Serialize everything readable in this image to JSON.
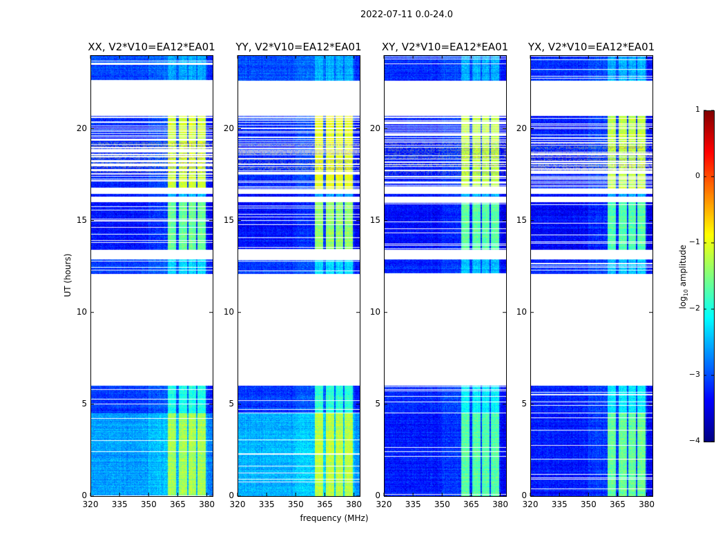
{
  "chart_data": {
    "type": "heatmap",
    "title": "2022-07-11 0.0-24.0",
    "xlabel": "frequency (MHz)",
    "ylabel": "UT (hours)",
    "xlim": [
      320,
      383
    ],
    "ylim": [
      0,
      24
    ],
    "xticks": [
      320,
      335,
      350,
      365,
      380
    ],
    "yticks": [
      0,
      5,
      10,
      15,
      20
    ],
    "colormap": "jet",
    "colorbar": {
      "label": "log10 amplitude",
      "label_base": "log",
      "label_sub": "10",
      "label_rest": " amplitude",
      "range": [
        -4,
        1
      ],
      "ticks": [
        1,
        0,
        -1,
        -2,
        -3,
        -4
      ],
      "tick_labels": [
        "1",
        "0",
        "−1",
        "−2",
        "−3",
        "−4"
      ]
    },
    "bright_bands_mhz": [
      [
        360,
        364.3
      ],
      [
        365.7,
        370
      ],
      [
        370.7,
        374.6
      ],
      [
        375.3,
        379.6
      ]
    ],
    "segments_hours": [
      {
        "t": [
          0,
          4.5
        ],
        "flag_fraction": 0.06
      },
      {
        "t": [
          4.5,
          6.0
        ],
        "flag_fraction": 0.08
      },
      {
        "t": [
          12.1,
          12.9
        ],
        "flag_fraction": 0.15
      },
      {
        "t": [
          13.4,
          16.0
        ],
        "flag_fraction": 0.12
      },
      {
        "t": [
          16.3,
          16.45
        ],
        "flag_fraction": 0.0
      },
      {
        "t": [
          16.7,
          20.7
        ],
        "flag_fraction": 0.35
      },
      {
        "t": [
          22.6,
          24.0
        ],
        "flag_fraction": 0.1
      }
    ],
    "panels": [
      {
        "title": "XX, V2*V10=EA12*EA01",
        "bg_levels": [
          -2.6,
          -3.1,
          -3.1,
          -3.3,
          -3.3,
          -3.2,
          -3.0
        ],
        "band_levels": [
          -1.3,
          -2.0,
          -2.3,
          -1.6,
          -2.5,
          -1.1,
          -2.5
        ]
      },
      {
        "title": "YY, V2*V10=EA12*EA01",
        "bg_levels": [
          -2.5,
          -3.1,
          -3.1,
          -3.3,
          -3.3,
          -3.2,
          -3.0
        ],
        "band_levels": [
          -1.2,
          -1.9,
          -2.3,
          -1.4,
          -2.5,
          -1.0,
          -2.5
        ]
      },
      {
        "title": "XY, V2*V10=EA12*EA01",
        "bg_levels": [
          -3.25,
          -3.2,
          -3.2,
          -3.35,
          -3.3,
          -3.25,
          -3.15
        ],
        "band_levels": [
          -1.7,
          -2.2,
          -2.4,
          -1.7,
          -2.5,
          -1.2,
          -2.5
        ]
      },
      {
        "title": "YX, V2*V10=EA12*EA01",
        "bg_levels": [
          -3.25,
          -3.2,
          -3.2,
          -3.35,
          -3.3,
          -3.25,
          -3.15
        ],
        "band_levels": [
          -1.6,
          -2.2,
          -2.4,
          -1.7,
          -2.5,
          -1.2,
          -2.5
        ]
      }
    ]
  }
}
